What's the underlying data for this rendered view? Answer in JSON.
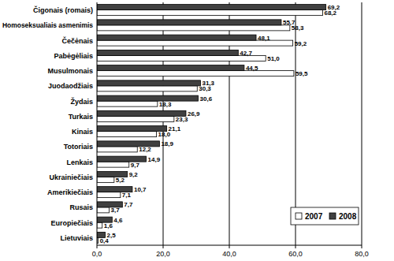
{
  "chart_data": {
    "type": "bar",
    "orientation": "horizontal",
    "categories": [
      "Čigonais (romais)",
      "Homoseksualiais asmenimis",
      "Čečėnais",
      "Pabėgėliais",
      "Musulmonais",
      "Juodaodžiais",
      "Žydais",
      "Turkais",
      "Kinais",
      "Totoriais",
      "Lenkais",
      "Ukrainiečiais",
      "Amerikiečiais",
      "Rusais",
      "Europiečiais",
      "Lietuviais"
    ],
    "series": [
      {
        "name": "2007",
        "color": "#ffffff",
        "values": [
          68.2,
          58.3,
          59.2,
          51.0,
          59.5,
          30.3,
          18.3,
          23.3,
          18.0,
          12.2,
          9.7,
          5.2,
          7.1,
          3.7,
          1.6,
          0.4
        ],
        "value_labels": [
          "68,2",
          "58,3",
          "59,2",
          "51,0",
          "59,5",
          "30,3",
          "18,3",
          "23,3",
          "18,0",
          "12,2",
          "9,7",
          "5,2",
          "7,1",
          "3,7",
          "1,6",
          "0,4"
        ]
      },
      {
        "name": "2008",
        "color": "#404040",
        "values": [
          69.2,
          55.7,
          48.1,
          42.7,
          44.5,
          31.3,
          30.6,
          26.9,
          21.1,
          18.9,
          14.9,
          9.2,
          10.7,
          7.7,
          4.6,
          2.5
        ],
        "value_labels": [
          "69,2",
          "55,7",
          "48,1",
          "42,7",
          "44,5",
          "31,3",
          "30,6",
          "26,9",
          "21,1",
          "18,9",
          "14,9",
          "9,2",
          "10,7",
          "7,7",
          "4,6",
          "2,5"
        ]
      }
    ],
    "xlim": [
      0,
      80
    ],
    "xticks": [
      {
        "value": 0,
        "label": "0,0"
      },
      {
        "value": 20,
        "label": "20,0"
      },
      {
        "value": 40,
        "label": "40,0"
      },
      {
        "value": 60,
        "label": "60,0"
      },
      {
        "value": 80,
        "label": "80,0"
      }
    ],
    "grid": true,
    "legend": "lower right",
    "data_labels": true
  }
}
